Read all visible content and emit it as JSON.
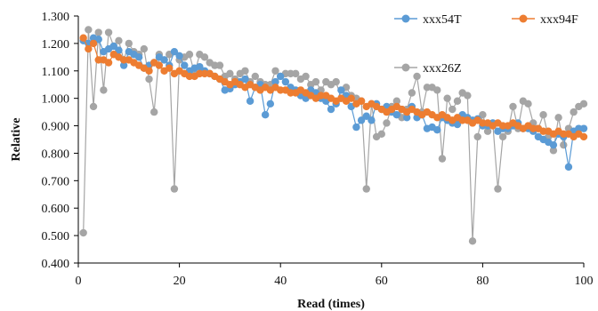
{
  "chart_data": {
    "type": "line",
    "title": "",
    "xlabel": "Read (times)",
    "ylabel": "Relative",
    "xlim": [
      0,
      100
    ],
    "ylim": [
      0.4,
      1.3
    ],
    "xticks": [
      0,
      20,
      40,
      60,
      80,
      100
    ],
    "xtick_labels": [
      "0",
      "20",
      "40",
      "60",
      "80",
      "100"
    ],
    "yticks": [
      0.4,
      0.5,
      0.6,
      0.7,
      0.8,
      0.9,
      1.0,
      1.1,
      1.2,
      1.3
    ],
    "ytick_labels": [
      "0.400",
      "0.500",
      "0.600",
      "0.700",
      "0.800",
      "0.900",
      "1.000",
      "1.100",
      "1.200",
      "1.300"
    ],
    "grid": false,
    "legend_position": "top-right",
    "x": [
      1,
      2,
      3,
      4,
      5,
      6,
      7,
      8,
      9,
      10,
      11,
      12,
      13,
      14,
      15,
      16,
      17,
      18,
      19,
      20,
      21,
      22,
      23,
      24,
      25,
      26,
      27,
      28,
      29,
      30,
      31,
      32,
      33,
      34,
      35,
      36,
      37,
      38,
      39,
      40,
      41,
      42,
      43,
      44,
      45,
      46,
      47,
      48,
      49,
      50,
      51,
      52,
      53,
      54,
      55,
      56,
      57,
      58,
      59,
      60,
      61,
      62,
      63,
      64,
      65,
      66,
      67,
      68,
      69,
      70,
      71,
      72,
      73,
      74,
      75,
      76,
      77,
      78,
      79,
      80,
      81,
      82,
      83,
      84,
      85,
      86,
      87,
      88,
      89,
      90,
      91,
      92,
      93,
      94,
      95,
      96,
      97,
      98,
      99,
      100
    ],
    "series": [
      {
        "name": "xxx54T",
        "color": "#5b9bd5",
        "values": [
          1.21,
          1.2,
          1.22,
          1.215,
          1.17,
          1.18,
          1.19,
          1.175,
          1.12,
          1.17,
          1.16,
          1.15,
          1.11,
          1.12,
          1.13,
          1.15,
          1.14,
          1.12,
          1.17,
          1.155,
          1.12,
          1.1,
          1.11,
          1.115,
          1.1,
          1.09,
          1.08,
          1.07,
          1.03,
          1.035,
          1.05,
          1.06,
          1.07,
          0.99,
          1.04,
          1.05,
          0.94,
          0.98,
          1.06,
          1.08,
          1.06,
          1.04,
          1.03,
          1.01,
          1.0,
          1.03,
          1.02,
          1.0,
          0.99,
          0.96,
          0.98,
          1.03,
          1.01,
          0.97,
          0.895,
          0.92,
          0.935,
          0.92,
          0.98,
          0.96,
          0.97,
          0.95,
          0.94,
          0.96,
          0.93,
          0.97,
          0.93,
          0.94,
          0.89,
          0.895,
          0.885,
          0.93,
          0.92,
          0.91,
          0.905,
          0.94,
          0.93,
          0.92,
          0.925,
          0.9,
          0.9,
          0.91,
          0.88,
          0.89,
          0.89,
          0.9,
          0.91,
          0.89,
          0.89,
          0.88,
          0.86,
          0.85,
          0.84,
          0.83,
          0.87,
          0.86,
          0.75,
          0.88,
          0.89,
          0.89
        ]
      },
      {
        "name": "xxx94F",
        "color": "#ed7d31",
        "values": [
          1.22,
          1.18,
          1.2,
          1.14,
          1.14,
          1.13,
          1.16,
          1.15,
          1.14,
          1.14,
          1.13,
          1.12,
          1.11,
          1.1,
          1.13,
          1.12,
          1.1,
          1.11,
          1.09,
          1.1,
          1.09,
          1.08,
          1.08,
          1.09,
          1.09,
          1.09,
          1.08,
          1.07,
          1.06,
          1.05,
          1.06,
          1.05,
          1.04,
          1.05,
          1.04,
          1.03,
          1.04,
          1.03,
          1.04,
          1.03,
          1.03,
          1.02,
          1.02,
          1.03,
          1.02,
          1.01,
          1.0,
          1.01,
          1.01,
          1.0,
          0.99,
          1.0,
          0.99,
          1.0,
          0.98,
          0.99,
          0.97,
          0.98,
          0.97,
          0.96,
          0.95,
          0.96,
          0.97,
          0.96,
          0.95,
          0.96,
          0.95,
          0.94,
          0.95,
          0.94,
          0.93,
          0.94,
          0.93,
          0.92,
          0.93,
          0.92,
          0.92,
          0.91,
          0.92,
          0.91,
          0.91,
          0.9,
          0.91,
          0.9,
          0.9,
          0.91,
          0.9,
          0.89,
          0.9,
          0.89,
          0.89,
          0.88,
          0.88,
          0.87,
          0.88,
          0.87,
          0.87,
          0.86,
          0.87,
          0.86
        ]
      },
      {
        "name": "xxx26Z",
        "color": "#a5a5a5",
        "values": [
          0.51,
          1.25,
          0.97,
          1.24,
          1.03,
          1.24,
          1.19,
          1.21,
          1.14,
          1.2,
          1.17,
          1.16,
          1.18,
          1.07,
          0.95,
          1.16,
          1.14,
          1.16,
          0.67,
          1.14,
          1.15,
          1.16,
          1.09,
          1.16,
          1.15,
          1.13,
          1.12,
          1.12,
          1.08,
          1.09,
          1.07,
          1.09,
          1.1,
          1.06,
          1.08,
          1.06,
          1.05,
          1.05,
          1.1,
          1.08,
          1.09,
          1.09,
          1.09,
          1.07,
          1.08,
          1.05,
          1.06,
          1.03,
          1.06,
          1.05,
          1.06,
          1.0,
          1.04,
          1.01,
          1.0,
          0.99,
          0.67,
          0.98,
          0.86,
          0.87,
          0.91,
          0.97,
          0.99,
          0.93,
          0.96,
          1.02,
          1.08,
          0.95,
          1.04,
          1.04,
          1.03,
          0.78,
          1.0,
          0.96,
          0.99,
          1.02,
          1.01,
          0.48,
          0.86,
          0.94,
          0.88,
          0.91,
          0.67,
          0.86,
          0.88,
          0.97,
          0.89,
          0.99,
          0.98,
          0.91,
          0.89,
          0.94,
          0.86,
          0.81,
          0.93,
          0.83,
          0.89,
          0.95,
          0.97,
          0.98
        ]
      }
    ]
  }
}
